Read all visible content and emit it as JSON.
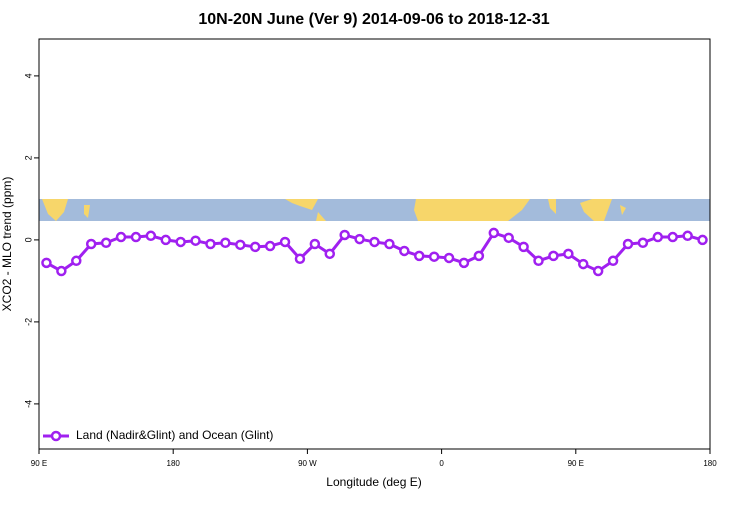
{
  "chart_data": {
    "type": "line",
    "title": "10N-20N June (Ver 9)   2014-09-06 to 2018-12-31",
    "x_label": "Longitude (deg E)",
    "y_label": "XCO2 - MLO trend (ppm)",
    "x": [
      95,
      105,
      115,
      125,
      135,
      145,
      155,
      165,
      175,
      185,
      195,
      205,
      215,
      225,
      235,
      245,
      255,
      265,
      275,
      285,
      295,
      305,
      315,
      325,
      335,
      345,
      355,
      365,
      375,
      385,
      395,
      405,
      415,
      425,
      435,
      445,
      455,
      465,
      475,
      485,
      495,
      505,
      515,
      525,
      535
    ],
    "series": [
      {
        "name": "Land (Nadir&Glint) and Ocean (Glint)",
        "color": "#a020f0",
        "values": [
          -0.56,
          -0.76,
          -0.51,
          -0.1,
          -0.07,
          0.07,
          0.07,
          0.1,
          0,
          -0.05,
          -0.02,
          -0.1,
          -0.07,
          -0.12,
          -0.17,
          -0.15,
          -0.05,
          -0.46,
          -0.1,
          -0.34,
          0.12,
          0.02,
          -0.05,
          -0.1,
          -0.27,
          -0.39,
          -0.41,
          -0.44,
          -0.56,
          -0.39,
          0.17,
          0.05,
          -0.17,
          -0.51,
          -0.39,
          -0.34,
          -0.59,
          -0.76,
          -0.51,
          -0.1,
          -0.07,
          0.07,
          0.07,
          0.1,
          0
        ]
      }
    ],
    "xlim": [
      90,
      540
    ],
    "xticks": [
      {
        "value": 90,
        "label": "90 E"
      },
      180,
      {
        "value": 270,
        "label": "90 W"
      },
      {
        "value": 360,
        "label": "0"
      },
      {
        "value": 450,
        "label": "90 E"
      },
      {
        "value": 540,
        "label": "180"
      }
    ],
    "ylim": [
      -5.1,
      4.9
    ],
    "yticks": [
      -4,
      -2,
      0,
      2,
      4
    ],
    "legend": "bottom-left"
  }
}
